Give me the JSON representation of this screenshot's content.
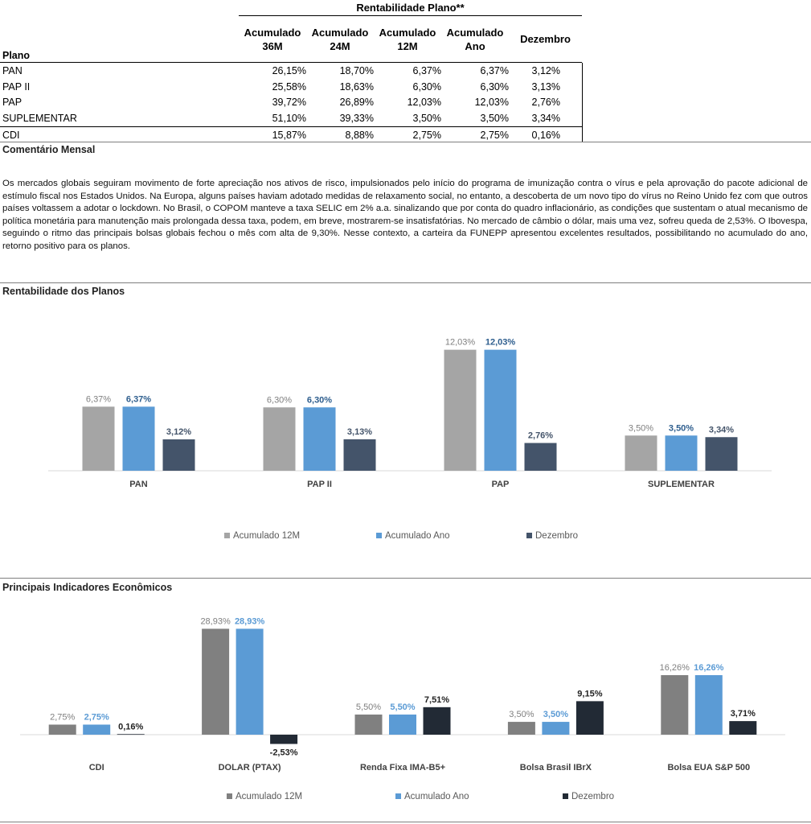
{
  "plan_table": {
    "title": "Rentabilidade Plano**",
    "row_header": "Plano",
    "columns": [
      [
        "Acumulado",
        "36M"
      ],
      [
        "Acumulado",
        "24M"
      ],
      [
        "Acumulado",
        "12M"
      ],
      [
        "Acumulado",
        "Ano"
      ],
      [
        "Dezembro",
        ""
      ]
    ],
    "rows": [
      {
        "name": "PAN",
        "values": [
          "26,15%",
          "18,70%",
          "6,37%",
          "6,37%",
          "3,12%"
        ]
      },
      {
        "name": "PAP II",
        "values": [
          "25,58%",
          "18,63%",
          "6,30%",
          "6,30%",
          "3,13%"
        ]
      },
      {
        "name": "PAP",
        "values": [
          "39,72%",
          "26,89%",
          "12,03%",
          "12,03%",
          "2,76%"
        ]
      },
      {
        "name": "SUPLEMENTAR",
        "values": [
          "51,10%",
          "39,33%",
          "3,50%",
          "3,50%",
          "3,34%"
        ]
      },
      {
        "name": "CDI",
        "values": [
          "15,87%",
          "8,88%",
          "2,75%",
          "2,75%",
          "0,16%"
        ]
      }
    ]
  },
  "comment": {
    "title": "Comentário Mensal",
    "text": "Os mercados globais seguiram movimento de forte apreciação nos ativos de risco, impulsionados pelo início do programa de imunização contra o vírus e pela aprovação do pacote adicional de estímulo fiscal nos Estados Unidos. Na Europa, alguns países haviam adotado medidas de relaxamento social, no entanto, a descoberta de um novo tipo do vírus no Reino Unido fez com que outros países voltassem a adotar o lockdown. No Brasil, o COPOM manteve a taxa SELIC em 2% a.a. sinalizando que por conta do quadro inflacionário, as condições que sustentam o atual mecanismo de política monetária para manutenção mais prolongada dessa taxa, podem, em breve, mostrarem-se insatisfatórias. No mercado de câmbio o dólar, mais uma vez, sofreu queda de 2,53%. O Ibovespa, seguindo o ritmo das principais bolsas globais fechou o mês com alta de 9,30%. Nesse contexto, a carteira da FUNEPP apresentou excelentes resultados, possibilitando no acumulado do ano, retorno positivo para os planos."
  },
  "chart1_title": "Rentabilidade dos Planos",
  "chart2_title": "Principais Indicadores Econômicos",
  "chart_data": [
    {
      "type": "bar",
      "categories": [
        "PAN",
        "PAP II",
        "PAP",
        "SUPLEMENTAR"
      ],
      "series": [
        {
          "name": "Acumulado 12M",
          "values": [
            6.37,
            6.3,
            12.03,
            3.5
          ],
          "labels": [
            "6,37%",
            "6,30%",
            "12,03%",
            "3,50%"
          ],
          "color": "#a5a5a5",
          "label_color": "#7f7f7f"
        },
        {
          "name": "Acumulado Ano",
          "values": [
            6.37,
            6.3,
            12.03,
            3.5
          ],
          "labels": [
            "6,37%",
            "6,30%",
            "12,03%",
            "3,50%"
          ],
          "color": "#5b9bd5",
          "label_color": "#2e5e8e"
        },
        {
          "name": "Dezembro",
          "values": [
            3.12,
            3.13,
            2.76,
            3.34
          ],
          "labels": [
            "3,12%",
            "3,13%",
            "2,76%",
            "3,34%"
          ],
          "color": "#44546a",
          "label_color": "#44546a"
        }
      ],
      "legend": "bottom"
    },
    {
      "type": "bar",
      "categories": [
        "CDI",
        "DOLAR (PTAX)",
        "Renda Fixa IMA-B5+",
        "Bolsa Brasil IBrX",
        "Bolsa EUA S&P 500"
      ],
      "series": [
        {
          "name": "Acumulado 12M",
          "values": [
            2.75,
            28.93,
            5.5,
            3.5,
            16.26
          ],
          "labels": [
            "2,75%",
            "28,93%",
            "5,50%",
            "3,50%",
            "16,26%"
          ],
          "color": "#808080",
          "label_color": "#7f7f7f"
        },
        {
          "name": "Acumulado Ano",
          "values": [
            2.75,
            28.93,
            5.5,
            3.5,
            16.26
          ],
          "labels": [
            "2,75%",
            "28,93%",
            "5,50%",
            "3,50%",
            "16,26%"
          ],
          "color": "#5b9bd5",
          "label_color": "#5b9bd5"
        },
        {
          "name": "Dezembro",
          "values": [
            0.16,
            -2.53,
            7.51,
            9.15,
            3.71
          ],
          "labels": [
            "0,16%",
            "-2,53%",
            "7,51%",
            "9,15%",
            "3,71%"
          ],
          "color": "#222a35",
          "label_color": "#222222"
        }
      ],
      "legend": "bottom"
    }
  ]
}
